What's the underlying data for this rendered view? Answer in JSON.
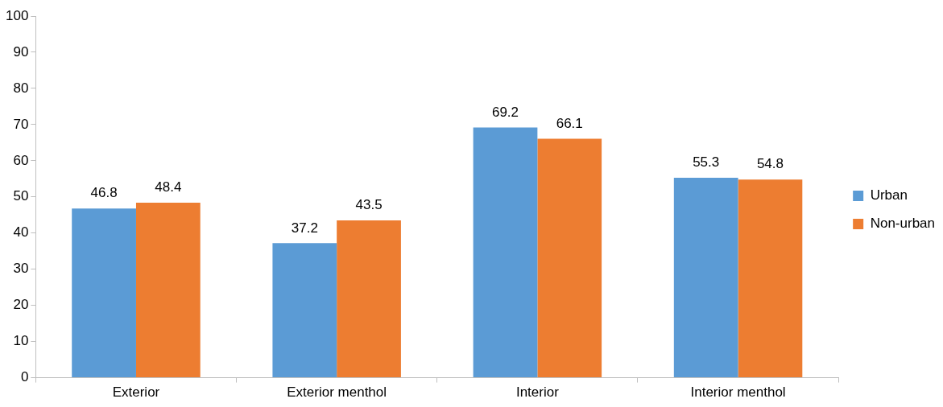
{
  "chart_data": {
    "type": "bar",
    "categories": [
      "Exterior",
      "Exterior menthol",
      "Interior",
      "Interior menthol"
    ],
    "series": [
      {
        "name": "Urban",
        "color": "#5b9bd5",
        "values": [
          46.8,
          37.2,
          69.2,
          55.3
        ]
      },
      {
        "name": "Non-urban",
        "color": "#ed7d31",
        "values": [
          48.4,
          43.5,
          66.1,
          54.8
        ]
      }
    ],
    "ylim": [
      0,
      100
    ],
    "yticks": [
      0,
      10,
      20,
      30,
      40,
      50,
      60,
      70,
      80,
      90,
      100
    ],
    "data_labels": true,
    "legend": "right"
  }
}
